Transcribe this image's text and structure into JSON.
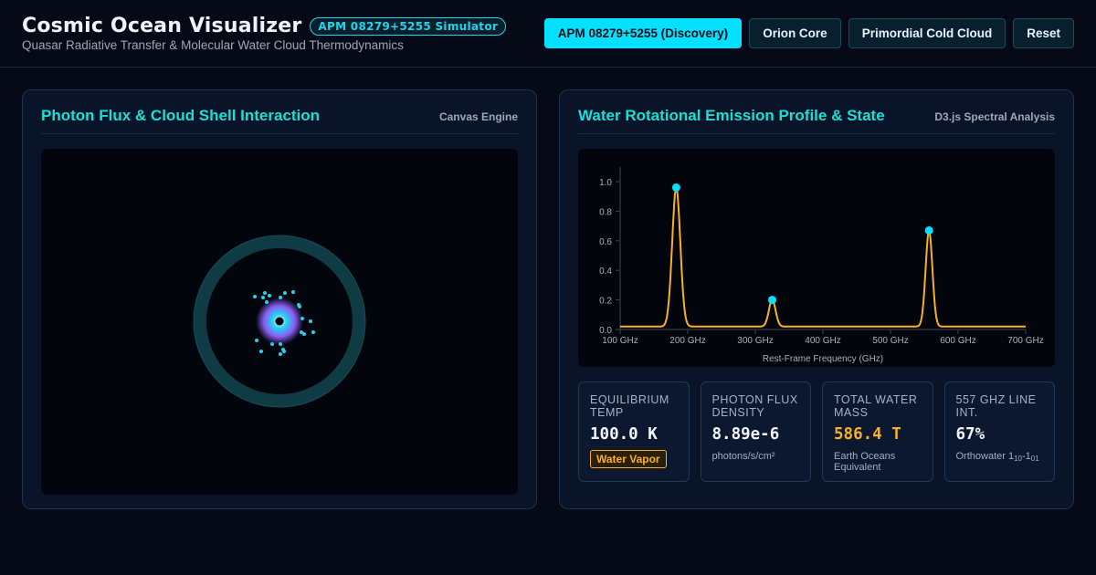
{
  "app": {
    "title": "Cosmic Ocean Visualizer",
    "badge": "APM 08279+5255 Simulator",
    "subtitle": "Quasar Radiative Transfer & Molecular Water Cloud Thermodynamics"
  },
  "presets": [
    {
      "label": "APM 08279+5255 (Discovery)",
      "active": true
    },
    {
      "label": "Orion Core",
      "active": false
    },
    {
      "label": "Primordial Cold Cloud",
      "active": false
    },
    {
      "label": "Reset",
      "active": false
    }
  ],
  "left_panel": {
    "title": "Photon Flux & Cloud Shell Interaction",
    "tag": "Canvas Engine"
  },
  "right_panel": {
    "title": "Water Rotational Emission Profile & State",
    "tag": "D3.js Spectral Analysis"
  },
  "colors": {
    "accent": "#06e0ff",
    "title": "#19e0d6",
    "spectrum_line": "#fbb024",
    "peak_marker": "#06e0ff",
    "shell": "#0f3b44"
  },
  "chart_data": {
    "type": "line",
    "xlabel": "Rest-Frame Frequency (GHz)",
    "ylabel": "",
    "xlim": [
      100,
      700
    ],
    "ylim": [
      0,
      1.1
    ],
    "x_ticks": [
      100,
      200,
      300,
      400,
      500,
      600,
      700
    ],
    "x_tick_labels": [
      "100 GHz",
      "200 GHz",
      "300 GHz",
      "400 GHz",
      "500 GHz",
      "600 GHz",
      "700 GHz"
    ],
    "y_ticks": [
      0.0,
      0.2,
      0.4,
      0.6,
      0.8,
      1.0
    ],
    "y_tick_labels": [
      "0.0",
      "0.2",
      "0.4",
      "0.6",
      "0.8",
      "1.0"
    ],
    "baseline": 0.02,
    "peaks": [
      {
        "x": 183,
        "y": 0.96,
        "width": 6
      },
      {
        "x": 325,
        "y": 0.2,
        "width": 5
      },
      {
        "x": 557,
        "y": 0.67,
        "width": 5
      }
    ]
  },
  "stats": [
    {
      "label": "EQUILIBRIUM TEMP",
      "value": "100.0 K",
      "badge": "Water Vapor"
    },
    {
      "label": "PHOTON FLUX DENSITY",
      "value": "8.89e-6",
      "sub": "photons/s/cm²"
    },
    {
      "label": "TOTAL WATER MASS",
      "value": "586.4 T",
      "sub": "Earth Oceans Equivalent"
    },
    {
      "label": "557 GHZ LINE INT.",
      "value": "67%",
      "sub_main": "Orthowater 1",
      "sub_a": "10",
      "sub_mid": "-1",
      "sub_b": "01"
    }
  ]
}
